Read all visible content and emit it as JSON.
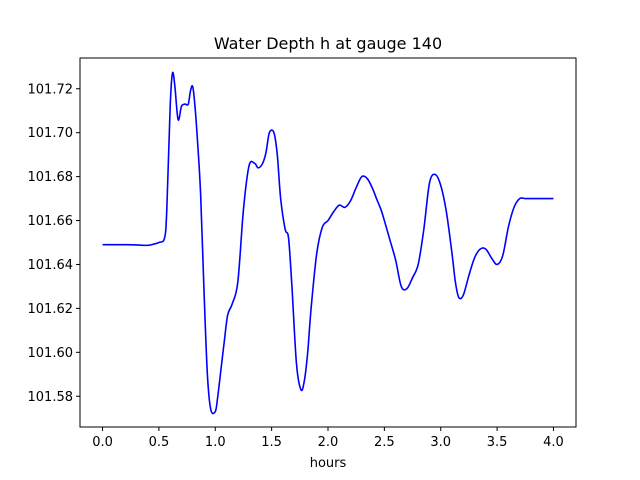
{
  "chart_data": {
    "type": "line",
    "title": "Water Depth h at gauge 140",
    "xlabel": "hours",
    "ylabel": "",
    "xlim": [
      -0.2,
      4.2
    ],
    "ylim": [
      101.566,
      101.734
    ],
    "xticks": [
      0.0,
      0.5,
      1.0,
      1.5,
      2.0,
      2.5,
      3.0,
      3.5,
      4.0
    ],
    "xtick_labels": [
      "0.0",
      "0.5",
      "1.0",
      "1.5",
      "2.0",
      "2.5",
      "3.0",
      "3.5",
      "4.0"
    ],
    "yticks": [
      101.58,
      101.6,
      101.62,
      101.64,
      101.66,
      101.68,
      101.7,
      101.72
    ],
    "ytick_labels": [
      "101.58",
      "101.60",
      "101.62",
      "101.64",
      "101.66",
      "101.68",
      "101.70",
      "101.72"
    ],
    "grid": false,
    "series": [
      {
        "color": "#0000ff",
        "x": [
          0.0,
          0.1,
          0.2,
          0.3,
          0.4,
          0.45,
          0.5,
          0.55,
          0.57,
          0.6,
          0.62,
          0.64,
          0.67,
          0.7,
          0.73,
          0.76,
          0.78,
          0.8,
          0.82,
          0.84,
          0.87,
          0.9,
          0.93,
          0.96,
          1.0,
          1.02,
          1.05,
          1.08,
          1.11,
          1.15,
          1.2,
          1.25,
          1.3,
          1.35,
          1.38,
          1.42,
          1.45,
          1.48,
          1.52,
          1.55,
          1.58,
          1.62,
          1.65,
          1.68,
          1.72,
          1.76,
          1.79,
          1.82,
          1.85,
          1.9,
          1.95,
          2.0,
          2.05,
          2.1,
          2.15,
          2.2,
          2.25,
          2.3,
          2.35,
          2.4,
          2.43,
          2.47,
          2.5,
          2.55,
          2.6,
          2.65,
          2.7,
          2.75,
          2.8,
          2.85,
          2.9,
          2.95,
          3.0,
          3.05,
          3.1,
          3.13,
          3.16,
          3.2,
          3.25,
          3.3,
          3.35,
          3.4,
          3.45,
          3.5,
          3.55,
          3.6,
          3.65,
          3.7,
          3.75,
          3.8,
          3.85,
          3.9,
          3.95,
          4.0
        ],
        "y": [
          101.649,
          101.649,
          101.649,
          101.6489,
          101.6487,
          101.6492,
          101.65,
          101.652,
          101.665,
          101.712,
          101.727,
          101.722,
          101.706,
          101.712,
          101.713,
          101.713,
          101.719,
          101.721,
          101.712,
          101.698,
          101.672,
          101.628,
          101.59,
          101.574,
          101.573,
          101.579,
          101.592,
          101.605,
          101.617,
          101.622,
          101.632,
          101.665,
          101.685,
          101.686,
          101.684,
          101.686,
          101.691,
          101.7,
          101.7,
          101.69,
          101.67,
          101.656,
          101.652,
          101.63,
          101.595,
          101.583,
          101.587,
          101.6,
          101.62,
          101.645,
          101.657,
          101.66,
          101.664,
          101.667,
          101.666,
          101.669,
          101.675,
          101.68,
          101.679,
          101.674,
          101.67,
          101.665,
          101.66,
          101.651,
          101.642,
          101.63,
          101.629,
          101.634,
          101.64,
          101.656,
          101.677,
          101.681,
          101.676,
          101.664,
          101.645,
          101.632,
          101.625,
          101.626,
          101.635,
          101.643,
          101.647,
          101.647,
          101.643,
          101.64,
          101.644,
          101.657,
          101.666,
          101.67,
          101.67,
          101.67,
          101.67,
          101.67,
          101.67,
          101.67
        ]
      }
    ]
  }
}
